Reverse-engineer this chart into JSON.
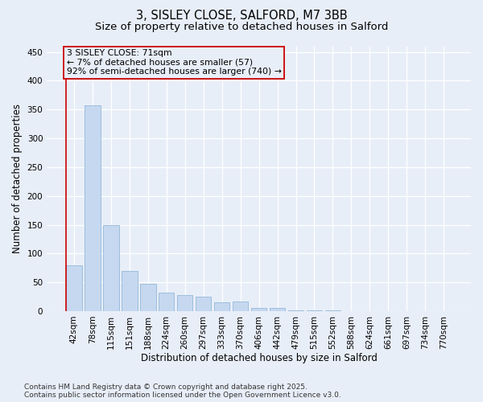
{
  "title_line1": "3, SISLEY CLOSE, SALFORD, M7 3BB",
  "title_line2": "Size of property relative to detached houses in Salford",
  "xlabel": "Distribution of detached houses by size in Salford",
  "ylabel": "Number of detached properties",
  "categories": [
    "42sqm",
    "78sqm",
    "115sqm",
    "151sqm",
    "188sqm",
    "224sqm",
    "260sqm",
    "297sqm",
    "333sqm",
    "370sqm",
    "406sqm",
    "442sqm",
    "479sqm",
    "515sqm",
    "552sqm",
    "588sqm",
    "624sqm",
    "661sqm",
    "697sqm",
    "734sqm",
    "770sqm"
  ],
  "values": [
    80,
    358,
    150,
    70,
    47,
    32,
    28,
    25,
    15,
    17,
    6,
    6,
    2,
    1,
    1,
    0,
    0,
    0,
    0,
    0,
    0
  ],
  "bar_color": "#c5d8f0",
  "bar_edge_color": "#94b8d8",
  "annotation_line1": "3 SISLEY CLOSE: 71sqm",
  "annotation_line2": "← 7% of detached houses are smaller (57)",
  "annotation_line3": "92% of semi-detached houses are larger (740) →",
  "annotation_box_edge_color": "#cc0000",
  "ylim": [
    0,
    460
  ],
  "yticks": [
    0,
    50,
    100,
    150,
    200,
    250,
    300,
    350,
    400,
    450
  ],
  "bg_color": "#e8eef8",
  "grid_color": "#ffffff",
  "vline_color": "#cc0000",
  "footer_text": "Contains HM Land Registry data © Crown copyright and database right 2025.\nContains public sector information licensed under the Open Government Licence v3.0.",
  "title_fontsize": 10.5,
  "subtitle_fontsize": 9.5,
  "axis_label_fontsize": 8.5,
  "tick_fontsize": 7.5,
  "ann_fontsize": 7.8,
  "footer_fontsize": 6.5
}
